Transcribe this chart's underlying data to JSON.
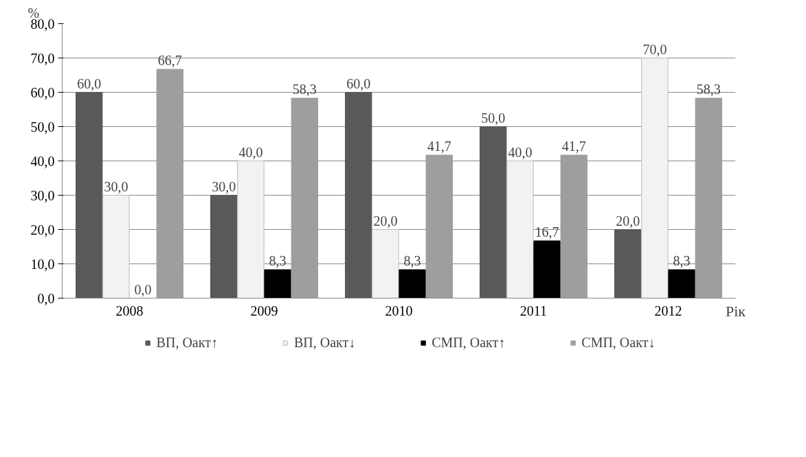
{
  "chart_data": {
    "type": "bar",
    "ylabel": "%",
    "xlabel": "Рік",
    "categories": [
      "2008",
      "2009",
      "2010",
      "2011",
      "2012"
    ],
    "series": [
      {
        "name": "ВП, Оакт↑",
        "color": "#595959",
        "values": [
          60.0,
          30.0,
          60.0,
          50.0,
          20.0
        ],
        "value_labels": [
          "60,0",
          "30,0",
          "60,0",
          "50,0",
          "20,0"
        ]
      },
      {
        "name": "ВП, Оакт↓",
        "color": "#f2f2f2",
        "values": [
          30.0,
          40.0,
          20.0,
          40.0,
          70.0
        ],
        "value_labels": [
          "30,0",
          "40,0",
          "20,0",
          "40,0",
          "70,0"
        ]
      },
      {
        "name": "СМП, Оакт↑",
        "color": "#000000",
        "values": [
          0.0,
          8.3,
          8.3,
          16.7,
          8.3
        ],
        "value_labels": [
          "0,0",
          "8,3",
          "8,3",
          "16,7",
          "8,3"
        ]
      },
      {
        "name": "СМП, Оакт↓",
        "color": "#9e9e9e",
        "values": [
          66.7,
          58.3,
          41.7,
          41.7,
          58.3
        ],
        "value_labels": [
          "66,7",
          "58,3",
          "41,7",
          "41,7",
          "58,3"
        ]
      }
    ],
    "ylim": [
      0,
      80
    ],
    "yticks": [
      {
        "value": 0,
        "label": "0,0"
      },
      {
        "value": 10,
        "label": "10,0"
      },
      {
        "value": 20,
        "label": "20,0"
      },
      {
        "value": 30,
        "label": "30,0"
      },
      {
        "value": 40,
        "label": "40,0"
      },
      {
        "value": 50,
        "label": "50,0"
      },
      {
        "value": 60,
        "label": "60,0"
      },
      {
        "value": 70,
        "label": "70,0"
      },
      {
        "value": 80,
        "label": "80,0"
      }
    ],
    "grid": "y",
    "legend": "bottom"
  }
}
